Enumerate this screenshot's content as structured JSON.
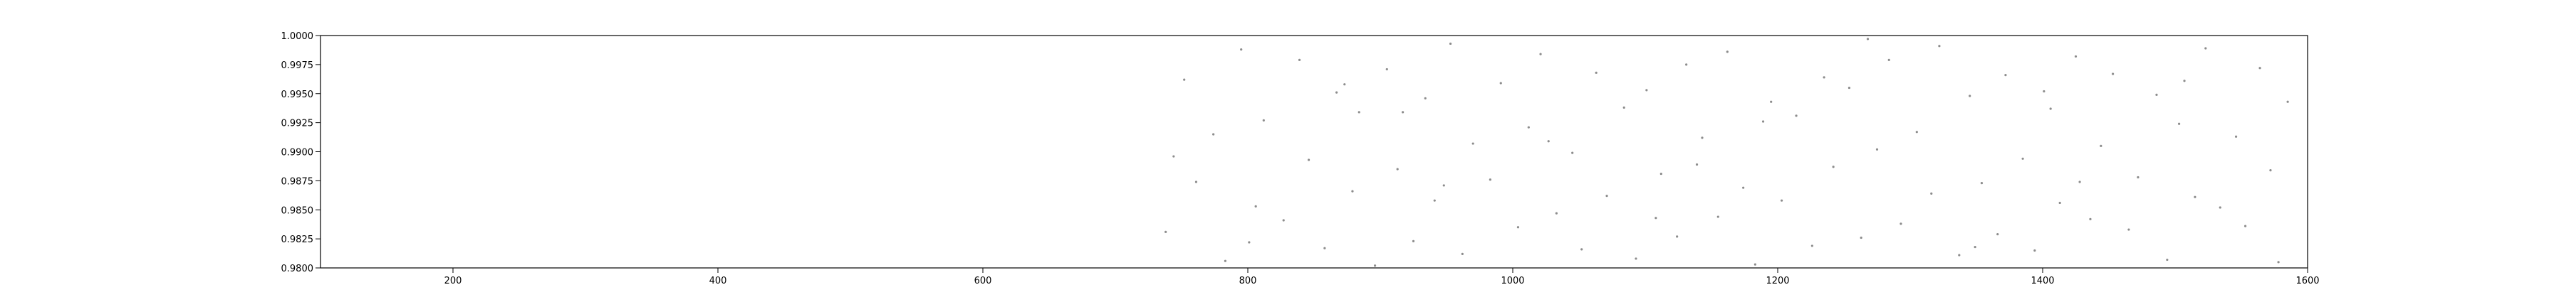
{
  "chart_data": {
    "type": "scatter",
    "color": "#8c8c8c",
    "xlim": [
      100,
      1600
    ],
    "xticks": [
      200,
      400,
      600,
      800,
      1000,
      1200,
      1400,
      1600
    ],
    "ylim": [
      0.98,
      1.0
    ],
    "yticks": [
      {
        "value": 0.98,
        "label": "0.9800"
      },
      {
        "value": 0.9825,
        "label": "0.9825"
      },
      {
        "value": 0.985,
        "label": "0.9850"
      },
      {
        "value": 0.9875,
        "label": "0.9875"
      },
      {
        "value": 0.99,
        "label": "0.9900"
      },
      {
        "value": 0.9925,
        "label": "0.9925"
      },
      {
        "value": 0.995,
        "label": "0.9950"
      },
      {
        "value": 0.9975,
        "label": "0.9975"
      },
      {
        "value": 1.0,
        "label": "1.0000"
      }
    ],
    "x": [
      738,
      752,
      761,
      774,
      783,
      795,
      806,
      812,
      827,
      839,
      846,
      858,
      867,
      879,
      884,
      896,
      905,
      913,
      925,
      934,
      941,
      953,
      962,
      970,
      983,
      991,
      1004,
      1012,
      1021,
      1033,
      1045,
      1052,
      1063,
      1071,
      1084,
      1093,
      1101,
      1112,
      1124,
      1131,
      1143,
      1155,
      1162,
      1174,
      1183,
      1195,
      1203,
      1214,
      1226,
      1235,
      1242,
      1254,
      1263,
      1275,
      1284,
      1293,
      1305,
      1316,
      1322,
      1337,
      1345,
      1354,
      1366,
      1372,
      1385,
      1394,
      1406,
      1413,
      1425,
      1436,
      1444,
      1453,
      1465,
      1472,
      1486,
      1494,
      1503,
      1515,
      1523,
      1534,
      1546,
      1553,
      1564,
      1572,
      1585,
      744,
      801,
      873,
      948,
      1027,
      1108,
      1189,
      1268,
      1349,
      1428,
      1507,
      1578,
      917,
      1139,
      1401
    ],
    "values": [
      0.9831,
      0.9962,
      0.9874,
      0.9915,
      0.9806,
      0.9988,
      0.9853,
      0.9927,
      0.9841,
      0.9979,
      0.9893,
      0.9817,
      0.9951,
      0.9866,
      0.9934,
      0.9802,
      0.9971,
      0.9885,
      0.9823,
      0.9946,
      0.9858,
      0.9993,
      0.9812,
      0.9907,
      0.9876,
      0.9959,
      0.9835,
      0.9921,
      0.9984,
      0.9847,
      0.9899,
      0.9816,
      0.9968,
      0.9862,
      0.9938,
      0.9808,
      0.9953,
      0.9881,
      0.9827,
      0.9975,
      0.9912,
      0.9844,
      0.9986,
      0.9869,
      0.9803,
      0.9943,
      0.9858,
      0.9931,
      0.9819,
      0.9964,
      0.9887,
      0.9955,
      0.9826,
      0.9902,
      0.9979,
      0.9838,
      0.9917,
      0.9864,
      0.9991,
      0.9811,
      0.9948,
      0.9873,
      0.9829,
      0.9966,
      0.9894,
      0.9815,
      0.9937,
      0.9856,
      0.9982,
      0.9842,
      0.9905,
      0.9967,
      0.9833,
      0.9878,
      0.9949,
      0.9807,
      0.9924,
      0.9861,
      0.9989,
      0.9852,
      0.9913,
      0.9836,
      0.9972,
      0.9884,
      0.9943,
      0.9896,
      0.9822,
      0.9958,
      0.9871,
      0.9909,
      0.9843,
      0.9926,
      0.9997,
      0.9818,
      0.9874,
      0.9961,
      0.9805,
      0.9934,
      0.9889,
      0.9952
    ]
  }
}
